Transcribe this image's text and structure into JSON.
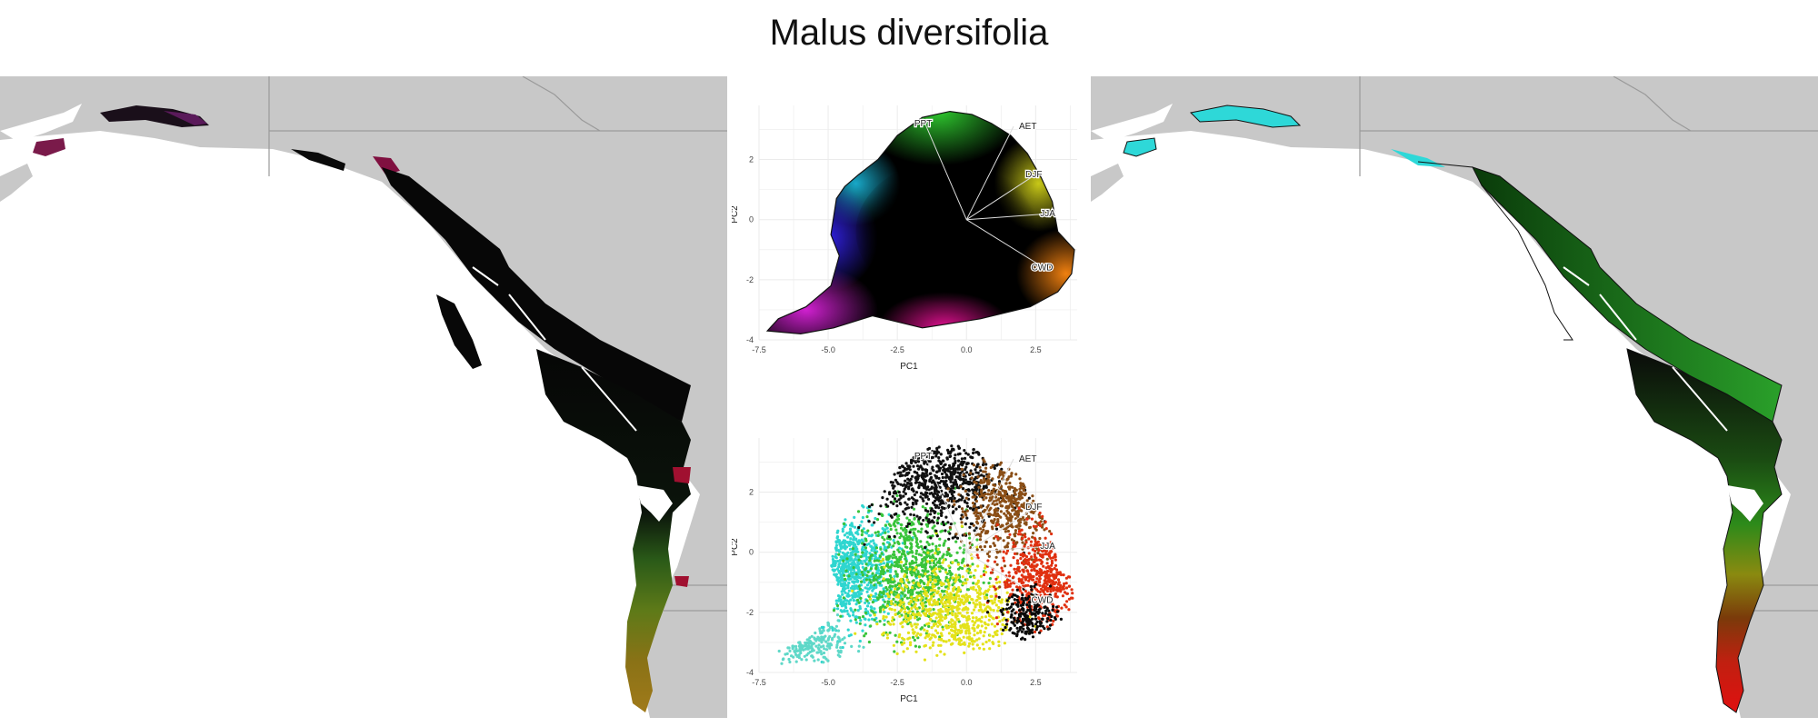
{
  "title": "Malus diversifolia",
  "colors": {
    "map_background": "#c8c8c8",
    "ocean": "#ffffff",
    "border": "#9a9a9a",
    "grid": "#ebebeb",
    "vector": "#dddddd"
  },
  "chart_data": [
    {
      "type": "scatter",
      "panel": "pca-continuous",
      "title": "",
      "xlabel": "PC1",
      "ylabel": "PC2",
      "xlim": [
        -7.5,
        4
      ],
      "ylim": [
        -4,
        3.8
      ],
      "xticks": [
        "-7.5",
        "-5.0",
        "-2.5",
        "0.0",
        "2.5"
      ],
      "yticks": [
        "-4",
        "-2",
        "0",
        "2"
      ],
      "grid": true,
      "coloring": "continuous RGB by PC position",
      "hull": [
        [
          -7.2,
          -3.7
        ],
        [
          -6.8,
          -3.3
        ],
        [
          -5.8,
          -2.9
        ],
        [
          -4.9,
          -2.2
        ],
        [
          -4.6,
          -1.2
        ],
        [
          -4.9,
          -0.5
        ],
        [
          -4.7,
          0.7
        ],
        [
          -4.4,
          1.1
        ],
        [
          -3.9,
          1.5
        ],
        [
          -3.2,
          2.0
        ],
        [
          -2.5,
          2.8
        ],
        [
          -1.6,
          3.4
        ],
        [
          -0.6,
          3.6
        ],
        [
          0.2,
          3.5
        ],
        [
          0.9,
          3.2
        ],
        [
          1.6,
          2.8
        ],
        [
          2.2,
          2.2
        ],
        [
          2.7,
          1.4
        ],
        [
          3.1,
          0.6
        ],
        [
          3.3,
          -0.4
        ],
        [
          3.9,
          -1.0
        ],
        [
          3.8,
          -1.8
        ],
        [
          3.3,
          -2.4
        ],
        [
          2.3,
          -2.9
        ],
        [
          0.5,
          -3.3
        ],
        [
          -1.6,
          -3.6
        ],
        [
          -3.4,
          -3.2
        ],
        [
          -4.8,
          -3.6
        ],
        [
          -6.0,
          -3.8
        ],
        [
          -7.2,
          -3.7
        ]
      ],
      "vectors": [
        {
          "label": "PPT",
          "x": -1.5,
          "y": 3.2
        },
        {
          "label": "AET",
          "x": 1.7,
          "y": 3.1
        },
        {
          "label": "DJF",
          "x": 2.5,
          "y": 1.5
        },
        {
          "label": "JJA",
          "x": 3.0,
          "y": 0.2
        },
        {
          "label": "CWD",
          "x": 2.8,
          "y": -1.6
        }
      ]
    },
    {
      "type": "scatter",
      "panel": "pca-points",
      "title": "",
      "xlabel": "PC1",
      "ylabel": "PC2",
      "xlim": [
        -7.5,
        4
      ],
      "ylim": [
        -4,
        3.8
      ],
      "xticks": [
        "-7.5",
        "-5.0",
        "-2.5",
        "0.0",
        "2.5"
      ],
      "yticks": [
        "-4",
        "-2",
        "0",
        "2"
      ],
      "grid": true,
      "clusters": [
        {
          "name": "cyan",
          "color": "#2fd6d0",
          "x": -4.3,
          "y": -0.6,
          "sx": 0.9,
          "sy": 0.9,
          "n": 700
        },
        {
          "name": "cyan-tail",
          "color": "#5fd8c8",
          "x": -5.8,
          "y": -3.0,
          "sx": 0.7,
          "sy": 0.4,
          "n": 180
        },
        {
          "name": "green",
          "color": "#39c43a",
          "x": -2.0,
          "y": -0.6,
          "sx": 1.0,
          "sy": 1.0,
          "n": 800
        },
        {
          "name": "yellow",
          "color": "#e4e21a",
          "x": -0.6,
          "y": -2.0,
          "sx": 1.2,
          "sy": 0.8,
          "n": 700
        },
        {
          "name": "black",
          "color": "#111111",
          "x": -1.0,
          "y": 2.4,
          "sx": 1.2,
          "sy": 0.8,
          "n": 700
        },
        {
          "name": "brown",
          "color": "#8a4e16",
          "x": 1.5,
          "y": 1.5,
          "sx": 0.9,
          "sy": 0.8,
          "n": 500
        },
        {
          "name": "red",
          "color": "#e03010",
          "x": 2.8,
          "y": -0.8,
          "sx": 0.8,
          "sy": 0.8,
          "n": 500
        },
        {
          "name": "black-blob",
          "color": "#0a0a0a",
          "x": 2.3,
          "y": -2.1,
          "sx": 0.5,
          "sy": 0.4,
          "n": 220
        }
      ],
      "vectors": [
        {
          "label": "PPT",
          "x": -1.5,
          "y": 3.2
        },
        {
          "label": "AET",
          "x": 1.7,
          "y": 3.1
        },
        {
          "label": "DJF",
          "x": 2.5,
          "y": 1.5
        },
        {
          "label": "JJA",
          "x": 3.0,
          "y": 0.2
        },
        {
          "label": "CWD",
          "x": 2.8,
          "y": -1.6
        }
      ]
    }
  ]
}
